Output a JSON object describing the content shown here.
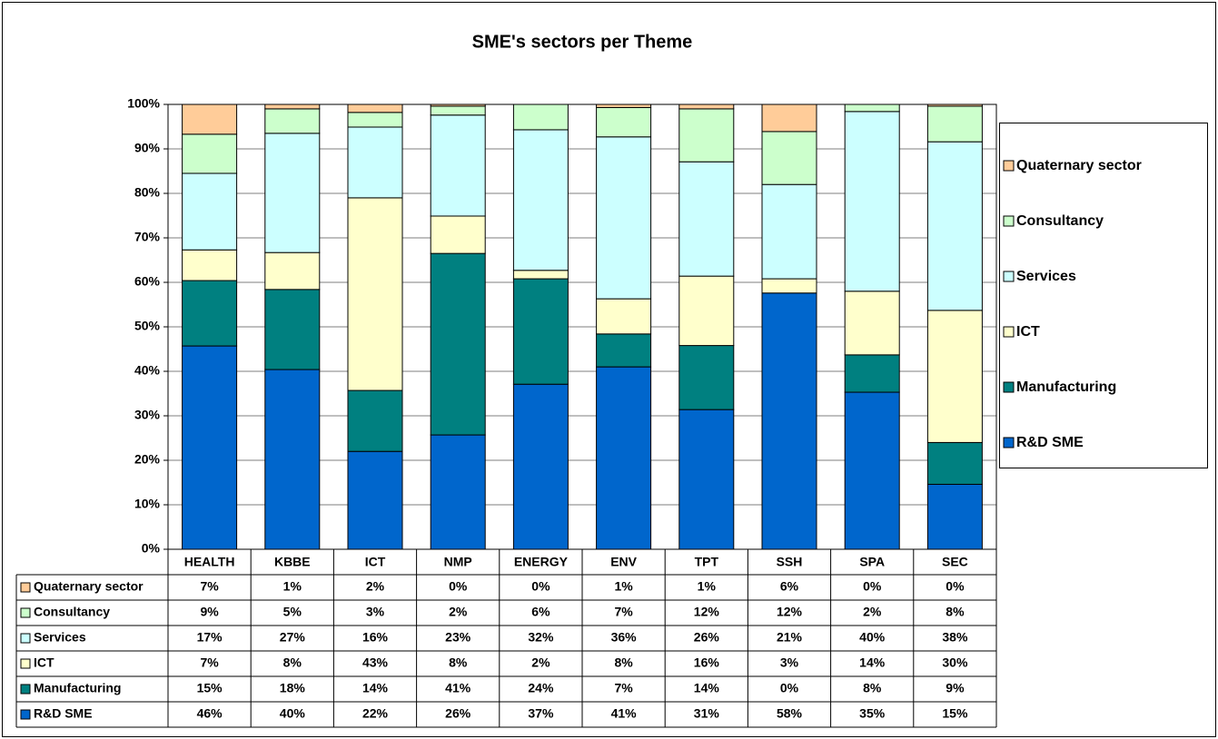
{
  "chart_data": {
    "type": "stacked_bar_100",
    "title": "SME's sectors per Theme",
    "categories": [
      "HEALTH",
      "KBBE",
      "ICT",
      "NMP",
      "ENERGY",
      "ENV",
      "TPT",
      "SSH",
      "SPA",
      "SEC"
    ],
    "series": [
      {
        "name": "R&D SME",
        "color": "#0066cc",
        "values": [
          45.7,
          40.4,
          22.0,
          25.7,
          37.1,
          41.0,
          31.4,
          57.6,
          35.3,
          14.6
        ],
        "value_labels": [
          "46%",
          "40%",
          "22%",
          "26%",
          "37%",
          "41%",
          "31%",
          "58%",
          "35%",
          "15%"
        ]
      },
      {
        "name": "Manufacturing",
        "color": "#008080",
        "values": [
          14.7,
          18.0,
          13.7,
          40.8,
          23.7,
          7.4,
          14.4,
          0,
          8.4,
          9.4
        ],
        "value_labels": [
          "15%",
          "18%",
          "14%",
          "41%",
          "24%",
          "7%",
          "14%",
          "0%",
          "8%",
          "9%"
        ]
      },
      {
        "name": "ICT",
        "color": "#ffffcc",
        "values": [
          6.9,
          8.3,
          43.3,
          8.4,
          1.9,
          7.9,
          15.6,
          3.2,
          14.3,
          29.7
        ],
        "value_labels": [
          "7%",
          "8%",
          "43%",
          "8%",
          "2%",
          "8%",
          "16%",
          "3%",
          "14%",
          "30%"
        ]
      },
      {
        "name": "Services",
        "color": "#ccffff",
        "values": [
          17.2,
          26.8,
          15.9,
          22.7,
          31.6,
          36.4,
          25.7,
          21.2,
          40.4,
          37.9
        ],
        "value_labels": [
          "17%",
          "27%",
          "16%",
          "23%",
          "32%",
          "36%",
          "26%",
          "21%",
          "40%",
          "38%"
        ]
      },
      {
        "name": "Consultancy",
        "color": "#ccffcc",
        "values": [
          8.8,
          5.5,
          3.3,
          2.0,
          5.7,
          6.6,
          11.9,
          11.9,
          1.6,
          8.0
        ],
        "value_labels": [
          "9%",
          "5%",
          "3%",
          "2%",
          "6%",
          "7%",
          "12%",
          "12%",
          "2%",
          "8%"
        ]
      },
      {
        "name": "Quaternary sector",
        "color": "#ffcc99",
        "values": [
          6.7,
          1.0,
          1.8,
          0.4,
          0,
          0.7,
          1.0,
          6.1,
          0,
          0.4
        ],
        "value_labels": [
          "7%",
          "1%",
          "2%",
          "0%",
          "0%",
          "1%",
          "1%",
          "6%",
          "0%",
          "0%"
        ]
      }
    ],
    "ylim": [
      0,
      100
    ],
    "yticks": [
      {
        "value": 0,
        "label": "0%"
      },
      {
        "value": 10,
        "label": "10%"
      },
      {
        "value": 20,
        "label": "20%"
      },
      {
        "value": 30,
        "label": "30%"
      },
      {
        "value": 40,
        "label": "40%"
      },
      {
        "value": 50,
        "label": "50%"
      },
      {
        "value": 60,
        "label": "60%"
      },
      {
        "value": 70,
        "label": "70%"
      },
      {
        "value": 80,
        "label": "80%"
      },
      {
        "value": 90,
        "label": "90%"
      },
      {
        "value": 100,
        "label": "100%"
      }
    ],
    "grid": true,
    "legend": "right",
    "data_table": true
  }
}
